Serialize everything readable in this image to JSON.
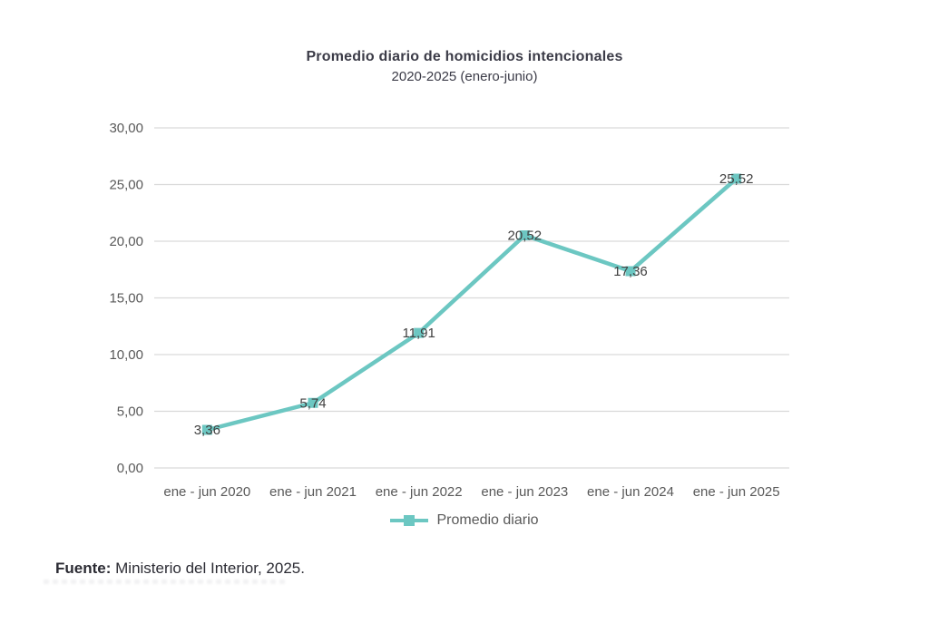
{
  "colors": {
    "accent": "#6cc7c2",
    "grid": "#d9d9d9",
    "axis_text": "#595959",
    "data_label_text": "#404040",
    "title_text": "#3b3b47",
    "footer_text": "#2b2b33"
  },
  "chart_data": {
    "type": "line",
    "title": "Promedio diario de homicidios intencionales",
    "subtitle": "2020-2025 (enero-junio)",
    "categories": [
      "ene - jun 2020",
      "ene - jun 2021",
      "ene - jun 2022",
      "ene - jun 2023",
      "ene - jun 2024",
      "ene - jun 2025"
    ],
    "series": [
      {
        "name": "Promedio diario",
        "values": [
          3.36,
          5.74,
          11.91,
          20.52,
          17.36,
          25.52
        ],
        "labels": [
          "3,36",
          "5,74",
          "11,91",
          "20,52",
          "17,36",
          "25,52"
        ],
        "color": "#6cc7c2",
        "marker": "square"
      }
    ],
    "ylim": [
      0,
      30
    ],
    "y_ticks": [
      "0,00",
      "5,00",
      "10,00",
      "15,00",
      "20,00",
      "25,00",
      "30,00"
    ],
    "grid": true,
    "legend_position": "bottom",
    "data_label_position": "center"
  },
  "footer": {
    "source_label": "Fuente:",
    "source_text": "Ministerio del Interior, 2025."
  }
}
